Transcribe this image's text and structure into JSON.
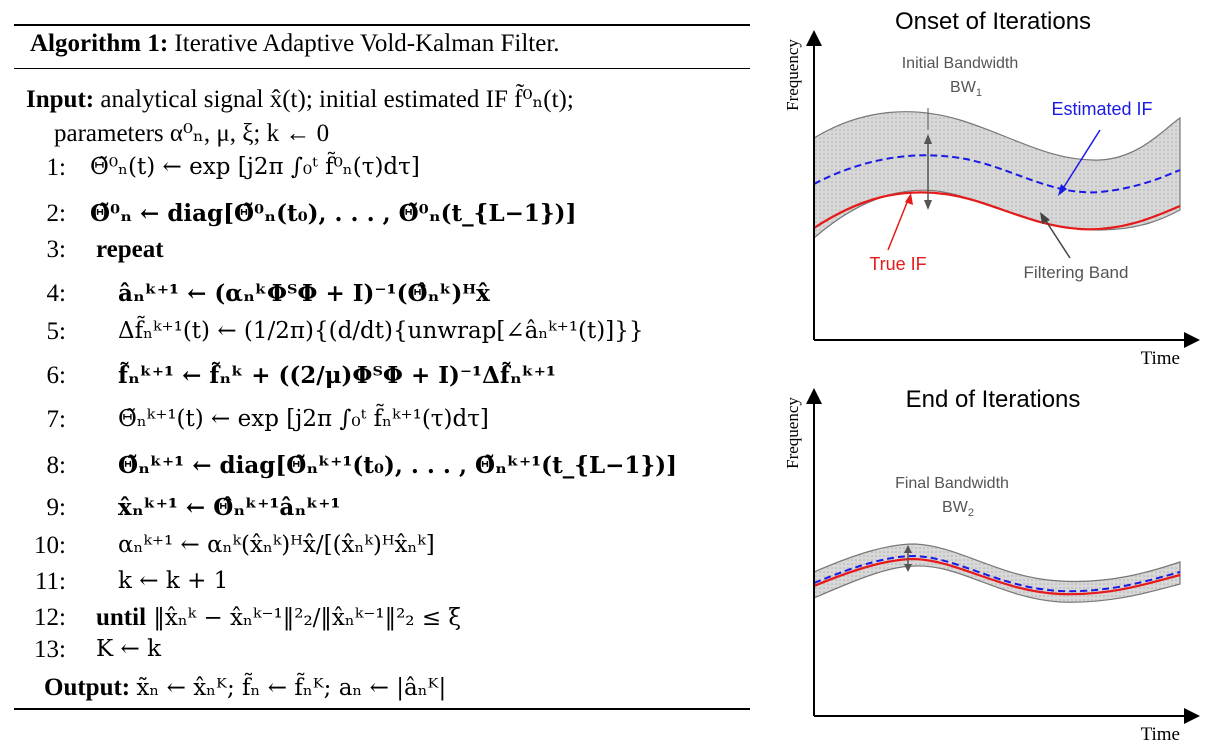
{
  "algorithm": {
    "label": "Algorithm 1:",
    "title": "Iterative Adaptive Vold-Kalman Filter.",
    "input_label": "Input:",
    "input_text": "analytical signal x̂(t); initial estimated IF f̃⁰ₙ(t);",
    "params_text": "parameters α⁰ₙ, μ, ξ; k ← 0",
    "steps": [
      {
        "num": "1:",
        "text": "Θ̃⁰ₙ(t) ← exp [j2π ∫₀ᵗ f̃⁰ₙ(τ)dτ]"
      },
      {
        "num": "2:",
        "text": "Θ̃⁰ₙ ← diag[Θ̃⁰ₙ(t₀), . . . , Θ̃⁰ₙ(t_{L−1})]"
      },
      {
        "num": "3:",
        "text": "repeat"
      },
      {
        "num": "4:",
        "text": "âₙᵏ⁺¹ ← (αₙᵏΦᵀΦ + I)⁻¹(Θ̂ₙᵏ)ᴴx̂"
      },
      {
        "num": "5:",
        "text": "Δf̃ₙᵏ⁺¹(t) ← (1/2π){(d/dt){unwrap[∠âₙᵏ⁺¹(t)]}}"
      },
      {
        "num": "6:",
        "text": "f̃ₙᵏ⁺¹ ← f̃ₙᵏ + ((2/μ)ΦᵀΦ + I)⁻¹Δf̃ₙᵏ⁺¹"
      },
      {
        "num": "7:",
        "text": "Θ̃ₙᵏ⁺¹(t) ← exp [j2π ∫₀ᵗ f̃ₙᵏ⁺¹(τ)dτ]"
      },
      {
        "num": "8:",
        "text": "Θ̃ₙᵏ⁺¹ ← diag[Θ̃ₙᵏ⁺¹(t₀), . . . , Θ̃ₙᵏ⁺¹(t_{L−1})]"
      },
      {
        "num": "9:",
        "text": "x̂ₙᵏ⁺¹ ← Θ̂ₙᵏ⁺¹âₙᵏ⁺¹"
      },
      {
        "num": "10:",
        "text": "αₙᵏ⁺¹ ← αₙᵏ(x̂ₙᵏ)ᴴx̂/[(x̂ₙᵏ)ᴴx̂ₙᵏ]"
      },
      {
        "num": "11:",
        "text": "k ← k + 1"
      },
      {
        "num": "12:",
        "text": "until ‖x̂ₙᵏ − x̂ₙᵏ⁻¹‖²₂/‖x̂ₙᵏ⁻¹‖²₂ ≤ ξ"
      },
      {
        "num": "13:",
        "text": "K ← k"
      }
    ],
    "output_label": "Output:",
    "output_text": "x̃ₙ ← x̂ₙᴷ; f̃ₙ ← f̃ₙᴷ; aₙ ← |âₙᴷ|"
  },
  "top_panel": {
    "title": "Onset of Iterations",
    "y_axis": "Frequency",
    "x_axis": "Time",
    "bandwidth_label": "Initial Bandwidth",
    "bandwidth_symbol": "BW",
    "bandwidth_sub": "1",
    "estimated_label": "Estimated IF",
    "true_label": "True IF",
    "band_label": "Filtering Band"
  },
  "bottom_panel": {
    "title": "End of Iterations",
    "y_axis": "Frequency",
    "x_axis": "Time",
    "bandwidth_label": "Final Bandwidth",
    "bandwidth_symbol": "BW",
    "bandwidth_sub": "2"
  },
  "colors": {
    "estimated_if": "#1a1ae6",
    "true_if": "#e61a1a",
    "band_fill": "#d4d4d4",
    "annotation_gray": "#555555"
  }
}
